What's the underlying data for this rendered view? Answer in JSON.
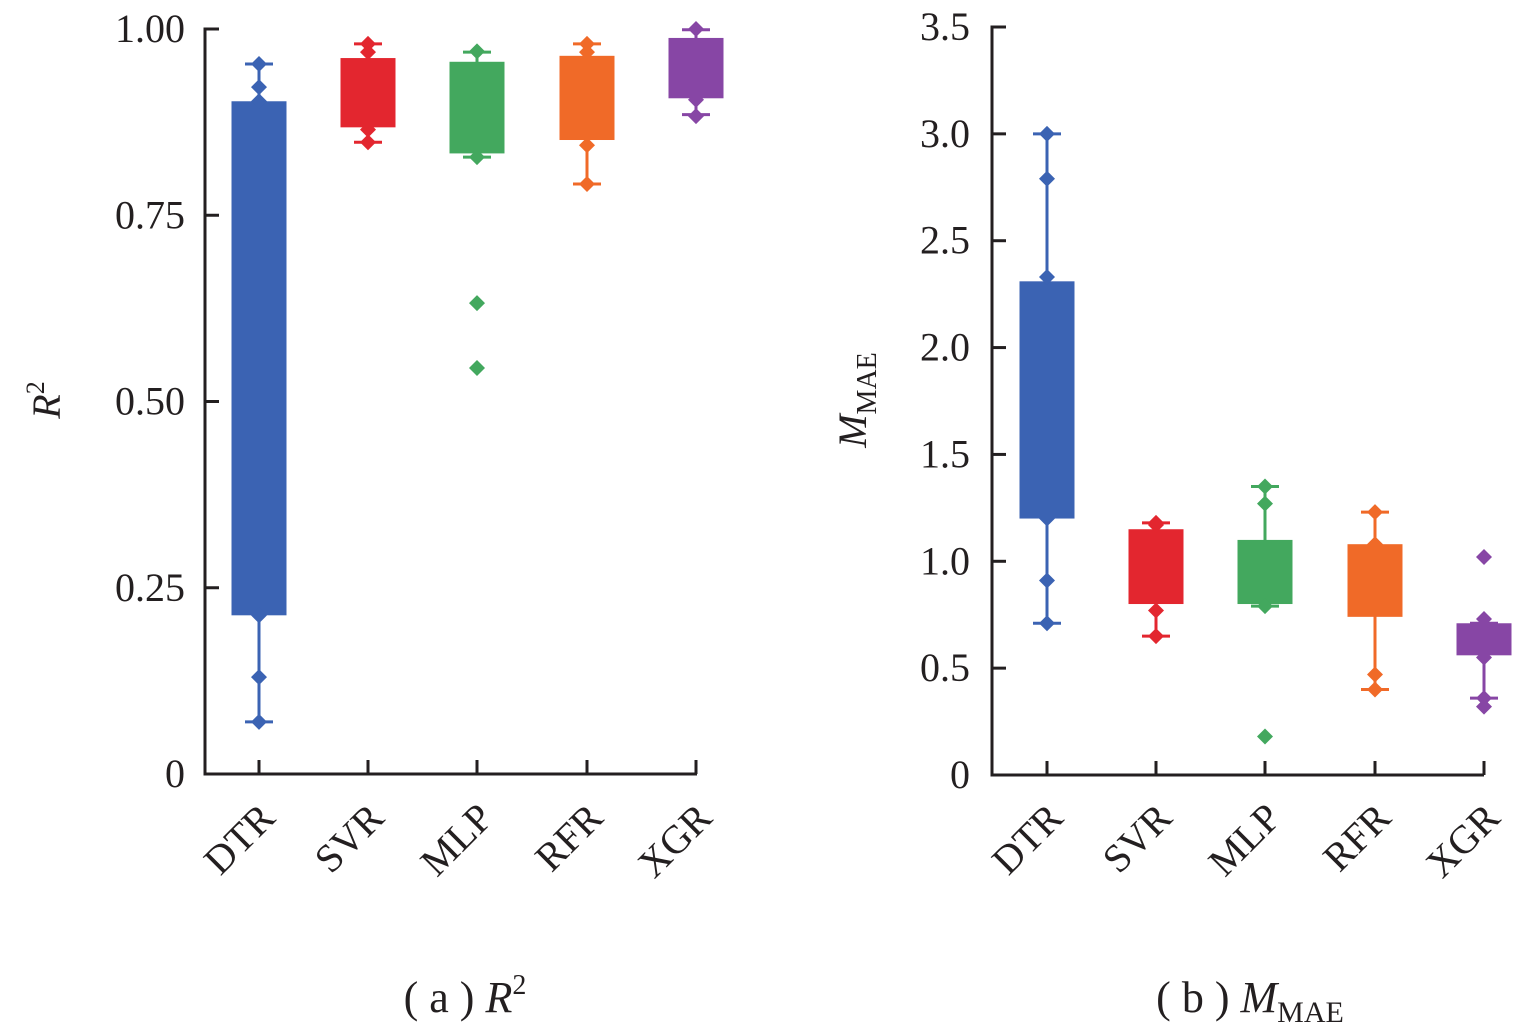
{
  "chart_data": [
    {
      "type": "box",
      "title": "",
      "caption_prefix": "( a ) ",
      "caption_main": "R",
      "caption_sup": "2",
      "caption_sub": "",
      "ylabel_main": "R",
      "ylabel_sup": "2",
      "ylabel_sub": "",
      "xlabel": "",
      "ylim": [
        0,
        1.0
      ],
      "yticks": [
        0,
        0.25,
        0.5,
        0.75,
        1.0
      ],
      "ytick_labels": [
        "0",
        "0.25",
        "0.50",
        "0.75",
        "1.00"
      ],
      "grid": false,
      "categories": [
        "DTR",
        "SVR",
        "MLP",
        "RFR",
        "XGR"
      ],
      "colors": [
        "#3B63B3",
        "#E3262F",
        "#43A85E",
        "#F06A28",
        "#8746A5"
      ],
      "boxes": [
        {
          "name": "DTR",
          "whisker_low": 0.07,
          "q1": 0.213,
          "q3": 0.903,
          "whisker_high": 0.953,
          "points": [
            0.953,
            0.922,
            0.903,
            0.213,
            0.13,
            0.07
          ]
        },
        {
          "name": "SVR",
          "whisker_low": 0.848,
          "q1": 0.868,
          "q3": 0.961,
          "whisker_high": 0.98,
          "points": [
            0.98,
            0.969,
            0.865,
            0.848
          ]
        },
        {
          "name": "MLP",
          "whisker_low": 0.828,
          "q1": 0.833,
          "q3": 0.956,
          "whisker_high": 0.969,
          "points": [
            0.97,
            0.828,
            0.632,
            0.545
          ]
        },
        {
          "name": "RFR",
          "whisker_low": 0.792,
          "q1": 0.851,
          "q3": 0.964,
          "whisker_high": 0.98,
          "points": [
            0.98,
            0.969,
            0.844,
            0.792
          ]
        },
        {
          "name": "XGR",
          "whisker_low": 0.885,
          "q1": 0.907,
          "q3": 0.988,
          "whisker_high": 0.999,
          "points": [
            1.0,
            0.905,
            0.883
          ]
        }
      ]
    },
    {
      "type": "box",
      "title": "",
      "caption_prefix": "( b ) ",
      "caption_main": "M",
      "caption_sup": "",
      "caption_sub": "MAE",
      "ylabel_main": "M",
      "ylabel_sup": "",
      "ylabel_sub": "MAE",
      "xlabel": "",
      "ylim": [
        0,
        3.5
      ],
      "yticks": [
        0,
        0.5,
        1.0,
        1.5,
        2.0,
        2.5,
        3.0,
        3.5
      ],
      "ytick_labels": [
        "0",
        "0.5",
        "1.0",
        "1.5",
        "2.0",
        "2.5",
        "3.0",
        "3.5"
      ],
      "grid": false,
      "categories": [
        "DTR",
        "SVR",
        "MLP",
        "RFR",
        "XGR"
      ],
      "colors": [
        "#3B63B3",
        "#E3262F",
        "#43A85E",
        "#F06A28",
        "#8746A5"
      ],
      "boxes": [
        {
          "name": "DTR",
          "whisker_low": 0.71,
          "q1": 1.2,
          "q3": 2.31,
          "whisker_high": 3.0,
          "points": [
            3.0,
            2.79,
            2.33,
            1.2,
            0.91,
            0.71
          ]
        },
        {
          "name": "SVR",
          "whisker_low": 0.65,
          "q1": 0.8,
          "q3": 1.15,
          "whisker_high": 1.18,
          "points": [
            1.18,
            1.17,
            0.77,
            0.65
          ]
        },
        {
          "name": "MLP",
          "whisker_low": 0.79,
          "q1": 0.8,
          "q3": 1.1,
          "whisker_high": 1.35,
          "points": [
            1.35,
            1.27,
            0.79,
            0.18
          ]
        },
        {
          "name": "RFR",
          "whisker_low": 0.4,
          "q1": 0.74,
          "q3": 1.08,
          "whisker_high": 1.23,
          "points": [
            1.23,
            1.08,
            0.47,
            0.4
          ]
        },
        {
          "name": "XGR",
          "whisker_low": 0.36,
          "q1": 0.56,
          "q3": 0.71,
          "whisker_high": 0.71,
          "points": [
            1.02,
            0.73,
            0.55,
            0.36,
            0.32
          ]
        }
      ]
    }
  ]
}
